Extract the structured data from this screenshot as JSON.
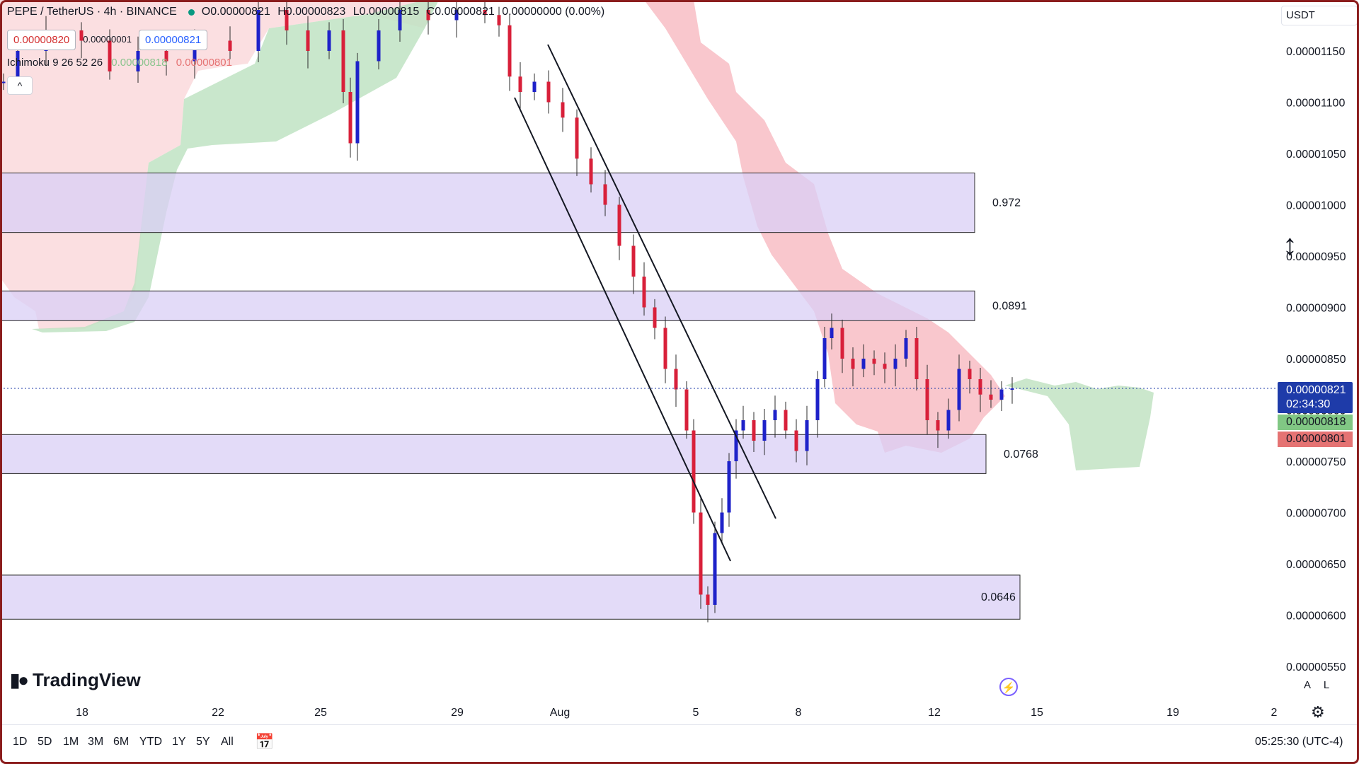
{
  "legend": {
    "symbol": "PEPE / TetherUS · 4h · BINANCE",
    "open": "O0.00000821",
    "high": "H0.00000823",
    "low": "L0.00000815",
    "close": "C0.00000821",
    "change": "0.00000000 (0.00%)"
  },
  "trade": {
    "sell": "0.00000820",
    "spread": "0.00000001",
    "buy": "0.00000821"
  },
  "indicator": {
    "name": "Ichimoku 9 26 52 26",
    "value1": "0.00000818",
    "value2": "0.00000801"
  },
  "collapse_label": "^",
  "axis": {
    "currency": "USDT",
    "price_badge": "0.00000821",
    "countdown": "02:34:30",
    "green_badge": "0.00000818",
    "red_badge": "0.00000801"
  },
  "brand": "TradingView",
  "axis_modes": [
    "A",
    "L"
  ],
  "ranges": [
    "1D",
    "5D",
    "1M",
    "3M",
    "6M",
    "YTD",
    "1Y",
    "5Y",
    "All"
  ],
  "clock": "05:25:30 (UTC-4)",
  "colors": {
    "up": "#1e22c9",
    "down": "#d8203a",
    "zone": "#d9cff5",
    "cloud_green": "#c8e6c9",
    "cloud_red": "#f8c9cf"
  },
  "icons": [
    "tradingview-logo-icon",
    "flash-icon",
    "settings-icon",
    "calendar-icon",
    "resize-cursor-icon"
  ],
  "chart_data": {
    "type": "candlestick",
    "title": "PEPE / TetherUS · 4h · BINANCE",
    "xlabel": "",
    "ylabel": "",
    "x_ticks": [
      "18",
      "22",
      "25",
      "29",
      "Aug",
      "5",
      "8",
      "12",
      "15",
      "19",
      "2"
    ],
    "y_ticks": [
      "0.00001150",
      "0.00001100",
      "0.00001050",
      "0.00001000",
      "0.00000950",
      "0.00000900",
      "0.00000850",
      "0.00000800",
      "0.00000750",
      "0.00000700",
      "0.00000650",
      "0.00000600",
      "0.00000550"
    ],
    "ylim": [
      5.36e-06,
      1.198e-05
    ],
    "zones": [
      {
        "label": "0.972",
        "top": 1.031e-05,
        "bottom": 9.73e-06
      },
      {
        "label": "0.0891",
        "top": 9.16e-06,
        "bottom": 8.87e-06
      },
      {
        "label": "0.0768",
        "top": 7.76e-06,
        "bottom": 7.38e-06
      },
      {
        "label": "0.0646",
        "top": 6.39e-06,
        "bottom": 5.96e-06
      }
    ],
    "channel_lines": [
      {
        "from": {
          "date": "Jul 31",
          "price": 1.104e-05
        },
        "to": {
          "date": "Aug 5 late",
          "price": 6.6e-06
        }
      },
      {
        "from": {
          "date": "Aug 1",
          "price": 1.156e-05
        },
        "to": {
          "date": "Aug 7",
          "price": 7e-06
        }
      }
    ],
    "last_price": 8.21e-06,
    "candles": [
      {
        "o": 8.4e-06,
        "h": 8.6e-06,
        "l": 8.3e-06,
        "c": 8.4e-06
      }
    ]
  }
}
